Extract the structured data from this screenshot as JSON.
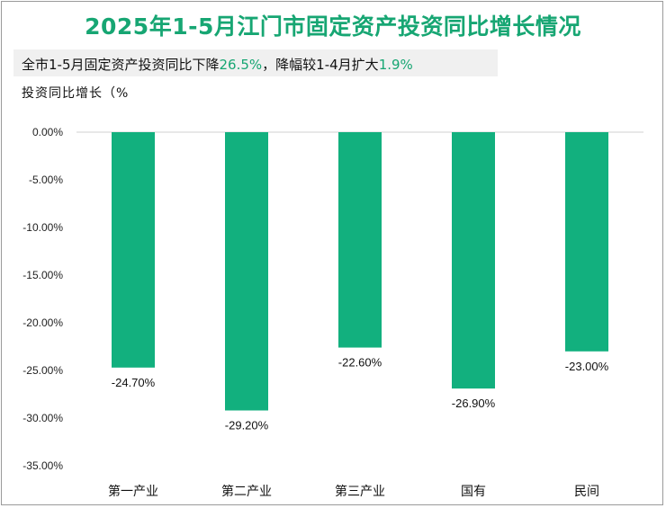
{
  "title": "2025年1-5月江门市固定资产投资同比增长情况",
  "subtitle": {
    "part1": "全市1-5月固定资产投资同比下降",
    "value1": "26.5%",
    "part2": "，降幅较1-4月扩大",
    "value2": "1.9%"
  },
  "colors": {
    "accent": "#17a673",
    "bar": "#12b07e"
  },
  "chart_data": {
    "type": "bar",
    "ylabel": "投资同比增长（%",
    "categories": [
      "第一产业",
      "第二产业",
      "第三产业",
      "国有",
      "民间"
    ],
    "values": [
      -24.7,
      -29.2,
      -22.6,
      -26.9,
      -23.0
    ],
    "data_labels": [
      "-24.70%",
      "-29.20%",
      "-22.60%",
      "-26.90%",
      "-23.00%"
    ],
    "ylim": [
      -35,
      0
    ],
    "yticks": [
      0,
      -5,
      -10,
      -15,
      -20,
      -25,
      -30,
      -35
    ],
    "ytick_labels": [
      "0.00%",
      "-5.00%",
      "-10.00%",
      "-15.00%",
      "-20.00%",
      "-25.00%",
      "-30.00%",
      "-35.00%"
    ],
    "grid": false,
    "legend": "none"
  }
}
